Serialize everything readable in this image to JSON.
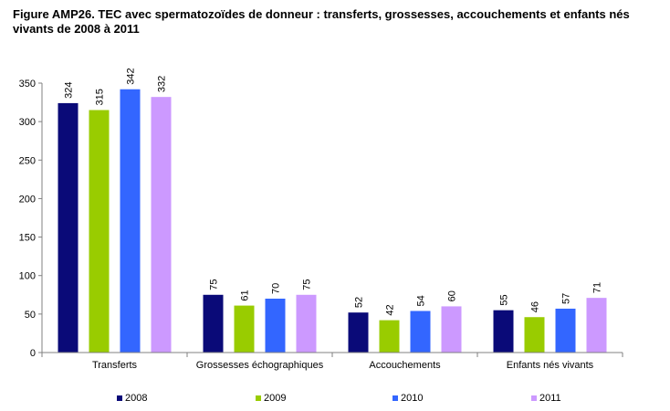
{
  "chart_data": {
    "type": "bar",
    "title": "Figure AMP26. TEC avec spermatozoïdes de donneur : transferts, grossesses, accouchements et enfants nés vivants de 2008 à 2011",
    "categories": [
      "Transferts",
      "Grossesses échographiques",
      "Accouchements",
      "Enfants nés vivants"
    ],
    "series": [
      {
        "name": "2008",
        "color": "#0a0a78",
        "values": [
          324,
          75,
          52,
          55
        ]
      },
      {
        "name": "2009",
        "color": "#99cc00",
        "values": [
          315,
          61,
          42,
          46
        ]
      },
      {
        "name": "2010",
        "color": "#3366ff",
        "values": [
          342,
          70,
          54,
          57
        ]
      },
      {
        "name": "2011",
        "color": "#cc99ff",
        "values": [
          332,
          75,
          60,
          71
        ]
      }
    ],
    "ylim": [
      0,
      350
    ],
    "yticks": [
      0,
      50,
      100,
      150,
      200,
      250,
      300,
      350
    ],
    "xlabel": "",
    "ylabel": "",
    "grid": false,
    "legend": "bottom"
  }
}
